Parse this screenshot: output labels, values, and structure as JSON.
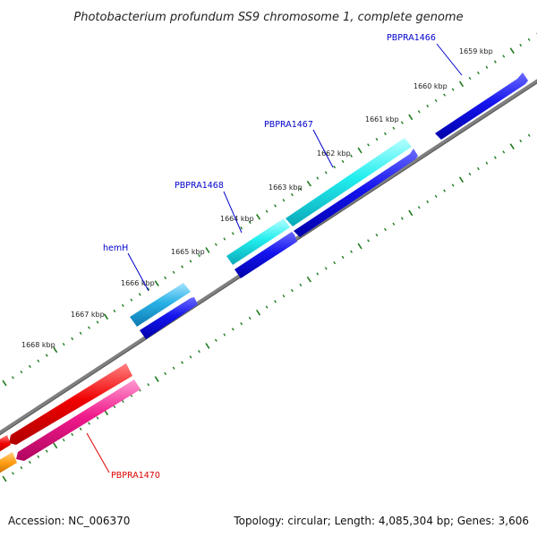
{
  "title": "Photobacterium profundum SS9 chromosome 1, complete genome",
  "footer": {
    "accession": "Accession: NC_006370",
    "summary": "Topology: circular; Length: 4,085,304 bp; Genes: 3,606"
  },
  "colors": {
    "backbone": "#808080",
    "ticks": "#1e7a1e",
    "gene_label_blue": "#0000cc",
    "gene_label_red": "#dd0000"
  },
  "kbp_labels": [
    "1659 kbp",
    "1660 kbp",
    "1661 kbp",
    "1662 kbp",
    "1663 kbp",
    "1664 kbp",
    "1665 kbp",
    "1666 kbp",
    "1667 kbp",
    "1668 kbp"
  ],
  "genes": [
    {
      "label": "PBPRA1466",
      "color": "#0000cc"
    },
    {
      "label": "PBPRA1467",
      "color": "#0000cc"
    },
    {
      "label": "PBPRA1468",
      "color": "#0000cc"
    },
    {
      "label": "hemH",
      "color": "#0000cc"
    },
    {
      "label": "PBPRA1470",
      "color": "#dd0000"
    }
  ]
}
